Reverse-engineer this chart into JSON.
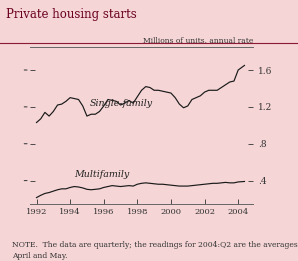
{
  "title": "Private housing starts",
  "subtitle": "Millions of units, annual rate",
  "note": "NOTE.  The data are quarterly; the readings for 2004:Q2 are the averages for\nApril and May.",
  "background_color": "#f5d5d5",
  "plot_bg_color": "#f5d5d5",
  "line_color": "#1a1a1a",
  "title_color": "#6b0020",
  "note_color": "#333333",
  "ylim": [
    0.15,
    1.85
  ],
  "xlim_start": 1991.6,
  "xlim_end": 2004.9,
  "single_family_label": "Single-family",
  "multifamily_label": "Multifamily",
  "right_yticks": [
    0.4,
    0.8,
    1.2,
    1.6
  ],
  "right_yticklabels": [
    ".4",
    ".8",
    "1.2",
    "1.6"
  ],
  "left_yticks": [
    0.4,
    0.8,
    1.2,
    1.6
  ],
  "xticks": [
    1992,
    1994,
    1996,
    1998,
    2000,
    2002,
    2004
  ],
  "xticklabels": [
    "1992",
    "1994",
    "1996",
    "1998",
    "2000",
    "2002",
    "2004"
  ],
  "single_family_data": {
    "dates": [
      1992.0,
      1992.25,
      1992.5,
      1992.75,
      1993.0,
      1993.25,
      1993.5,
      1993.75,
      1994.0,
      1994.25,
      1994.5,
      1994.75,
      1995.0,
      1995.25,
      1995.5,
      1995.75,
      1996.0,
      1996.25,
      1996.5,
      1996.75,
      1997.0,
      1997.25,
      1997.5,
      1997.75,
      1998.0,
      1998.25,
      1998.5,
      1998.75,
      1999.0,
      1999.25,
      1999.5,
      1999.75,
      2000.0,
      2000.25,
      2000.5,
      2000.75,
      2001.0,
      2001.25,
      2001.5,
      2001.75,
      2002.0,
      2002.25,
      2002.5,
      2002.75,
      2003.0,
      2003.25,
      2003.5,
      2003.75,
      2004.0,
      2004.375
    ],
    "values": [
      1.03,
      1.07,
      1.14,
      1.1,
      1.15,
      1.22,
      1.23,
      1.26,
      1.3,
      1.29,
      1.28,
      1.21,
      1.1,
      1.12,
      1.12,
      1.15,
      1.21,
      1.28,
      1.27,
      1.26,
      1.22,
      1.24,
      1.27,
      1.24,
      1.31,
      1.38,
      1.42,
      1.41,
      1.38,
      1.38,
      1.37,
      1.36,
      1.35,
      1.3,
      1.23,
      1.19,
      1.21,
      1.28,
      1.3,
      1.32,
      1.36,
      1.38,
      1.38,
      1.38,
      1.41,
      1.44,
      1.47,
      1.48,
      1.6,
      1.65
    ]
  },
  "multifamily_data": {
    "dates": [
      1992.0,
      1992.25,
      1992.5,
      1992.75,
      1993.0,
      1993.25,
      1993.5,
      1993.75,
      1994.0,
      1994.25,
      1994.5,
      1994.75,
      1995.0,
      1995.25,
      1995.5,
      1995.75,
      1996.0,
      1996.25,
      1996.5,
      1996.75,
      1997.0,
      1997.25,
      1997.5,
      1997.75,
      1998.0,
      1998.25,
      1998.5,
      1998.75,
      1999.0,
      1999.25,
      1999.5,
      1999.75,
      2000.0,
      2000.25,
      2000.5,
      2000.75,
      2001.0,
      2001.25,
      2001.5,
      2001.75,
      2002.0,
      2002.25,
      2002.5,
      2002.75,
      2003.0,
      2003.25,
      2003.5,
      2003.75,
      2004.0,
      2004.375
    ],
    "values": [
      0.215,
      0.24,
      0.26,
      0.27,
      0.285,
      0.3,
      0.31,
      0.31,
      0.325,
      0.335,
      0.33,
      0.32,
      0.305,
      0.3,
      0.305,
      0.31,
      0.325,
      0.335,
      0.345,
      0.34,
      0.335,
      0.34,
      0.345,
      0.34,
      0.36,
      0.37,
      0.375,
      0.37,
      0.365,
      0.36,
      0.36,
      0.355,
      0.35,
      0.345,
      0.34,
      0.34,
      0.34,
      0.345,
      0.35,
      0.355,
      0.36,
      0.365,
      0.37,
      0.37,
      0.375,
      0.38,
      0.375,
      0.375,
      0.385,
      0.39
    ]
  }
}
